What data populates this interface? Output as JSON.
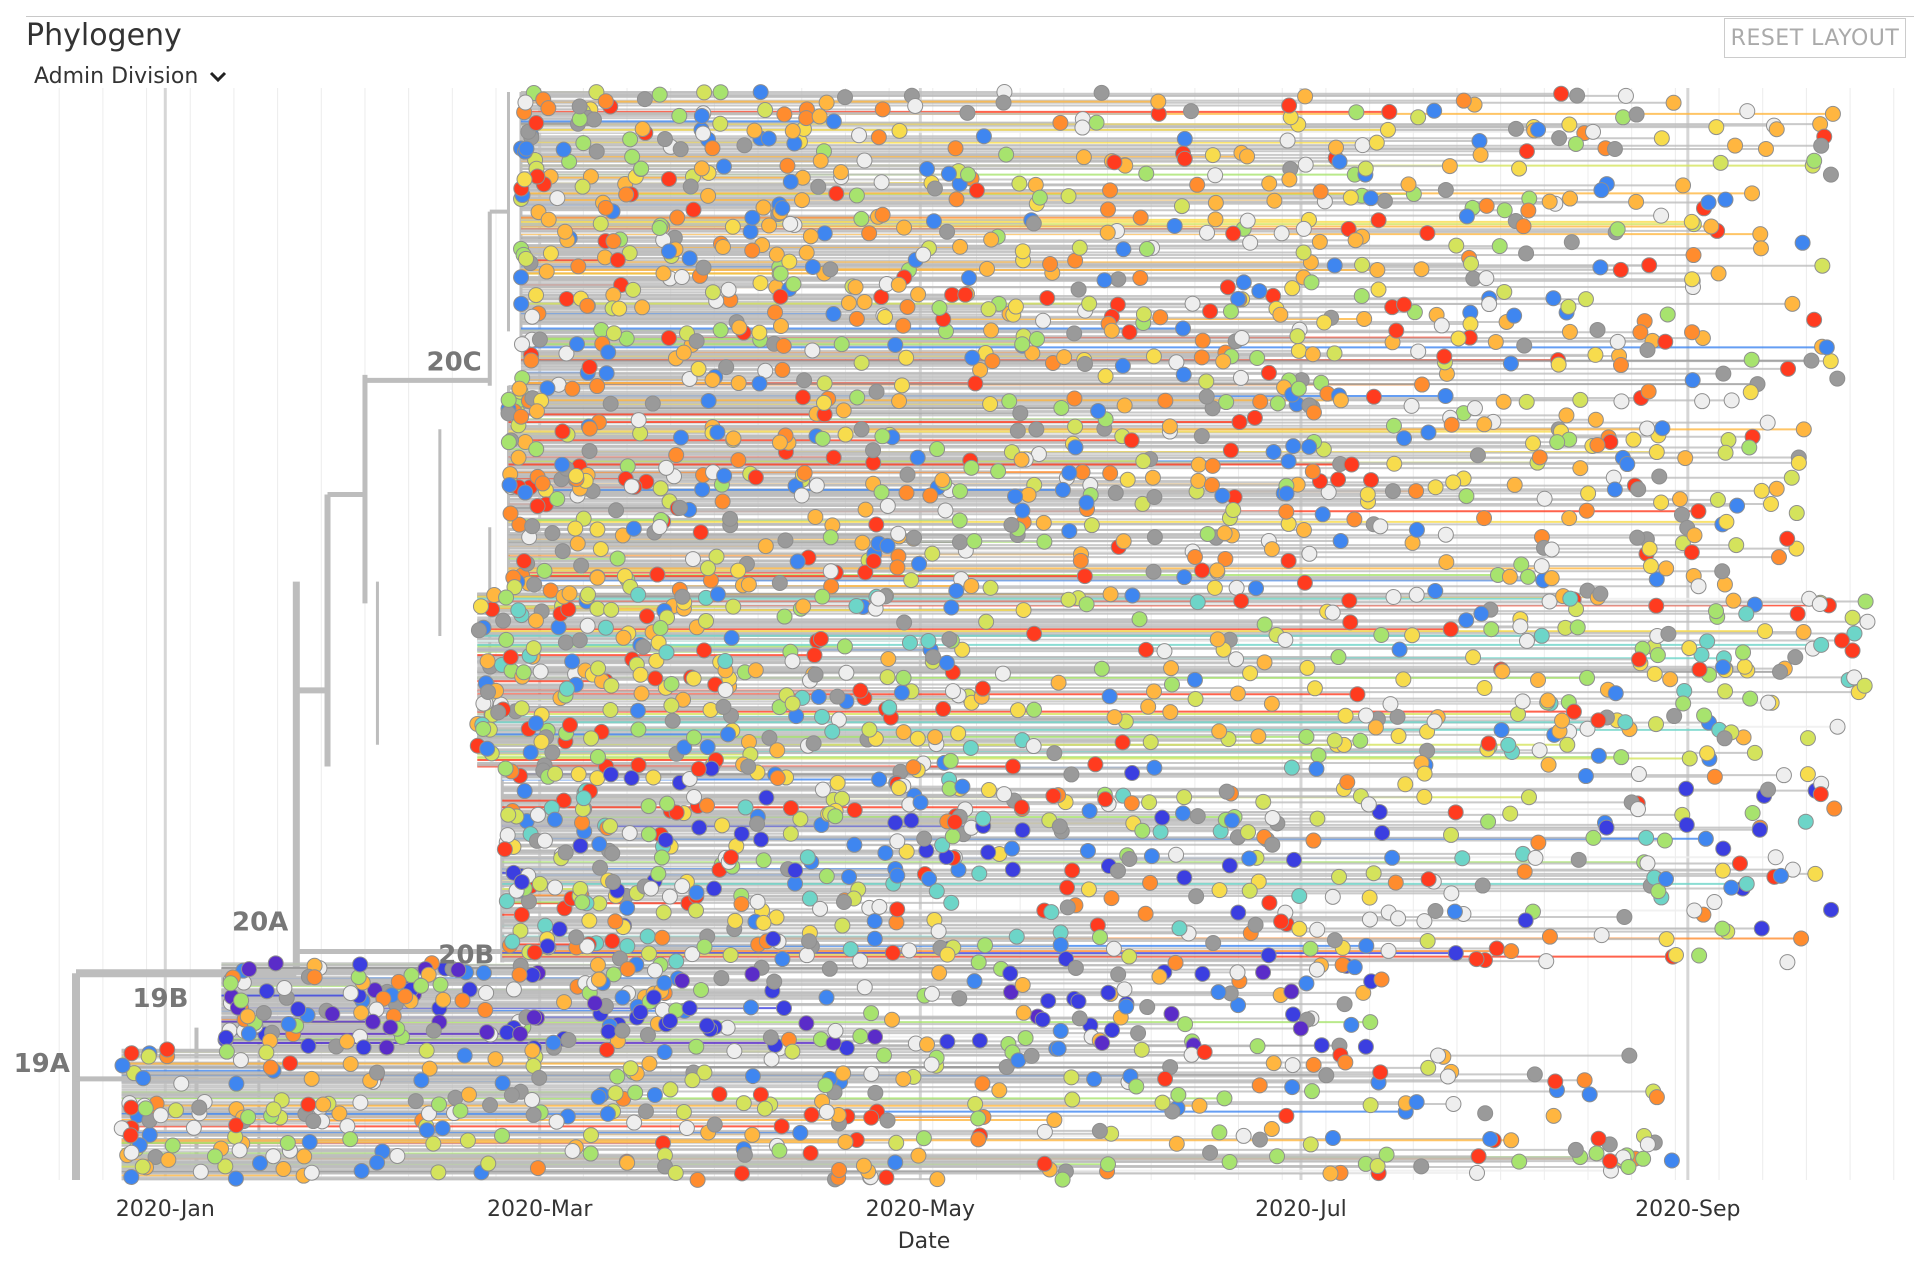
{
  "panel": {
    "title": "Phylogeny",
    "reset_label": "RESET LAYOUT",
    "color_by": "Admin Division",
    "chevron_icon": "chevron-down-icon"
  },
  "chart_data": {
    "type": "phylogeny-tree",
    "layout": "rectangular",
    "x_axis": {
      "label": "Date",
      "ticks": [
        "2020-Jan",
        "2020-Mar",
        "2020-May",
        "2020-Jul",
        "2020-Sep"
      ],
      "range": [
        "2019-12-10",
        "2020-10-05"
      ],
      "grid": true
    },
    "clades": [
      {
        "name": "19A",
        "date": "2019-12-18",
        "row": 0.91
      },
      {
        "name": "19B",
        "date": "2020-01-06",
        "row": 0.85
      },
      {
        "name": "20A",
        "date": "2020-01-22",
        "row": 0.78
      },
      {
        "name": "20B",
        "date": "2020-02-24",
        "row": 0.81
      },
      {
        "name": "20C",
        "date": "2020-02-22",
        "row": 0.265
      }
    ],
    "colors": {
      "branch": "#bdbdbd",
      "node_stroke": "#9e9e9e",
      "palette": [
        "#ff3b1f",
        "#ff8c2e",
        "#ffb640",
        "#f7dc4d",
        "#d4e35c",
        "#a7e36e",
        "#6dd5c8",
        "#3f86f0",
        "#3b3ee0",
        "#5a2cc8",
        "#9a9a9a",
        "#eeeeee"
      ]
    },
    "tip_count_estimate": 3800,
    "x_grid": true
  }
}
